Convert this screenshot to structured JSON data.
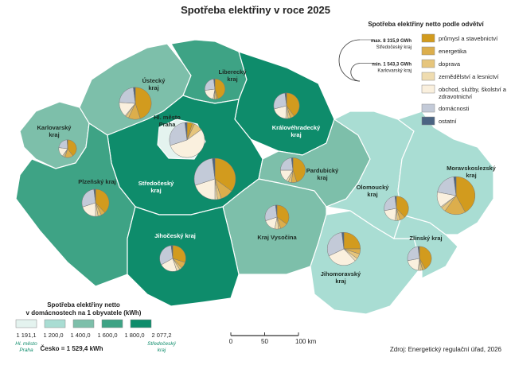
{
  "title": "Spotřeba elektřiny v roce 2025",
  "sector_legend": {
    "title": "Spotřeba elektřiny netto podle odvětví",
    "items": [
      {
        "name": "průmysl a stavebnictví",
        "color": "#d29b1e"
      },
      {
        "name": "energetika",
        "color": "#dcae4c"
      },
      {
        "name": "doprava",
        "color": "#e6c57c"
      },
      {
        "name": "zemědělství a lesnictví",
        "color": "#efdcb0"
      },
      {
        "name": "obchod, služby, školství a zdravotnictví",
        "color": "#faf0de"
      },
      {
        "name": "domácnosti",
        "color": "#c3cad8"
      },
      {
        "name": "ostatní",
        "color": "#4b6482"
      }
    ]
  },
  "pie_legend": {
    "max": {
      "value": 8315.9,
      "label": "max. 8 315,9 GWh",
      "region": "Středočeský kraj"
    },
    "min": {
      "value": 1543.3,
      "label": "min. 1 543,3 GWh",
      "region": "Karlovarský kraj"
    }
  },
  "class_legend": {
    "title": [
      "Spotřeba elektřiny netto",
      "v domácnostech na 1 obyvatele (kWh)"
    ],
    "colors": [
      "#e4f3ef",
      "#a9ddd3",
      "#7dbfaa",
      "#3ea385",
      "#0e8c6b"
    ],
    "breaks": [
      {
        "value": 1191.1,
        "label": "1 191,1"
      },
      {
        "value": 1200,
        "label": "1 200,0"
      },
      {
        "value": 1400,
        "label": "1 400,0"
      },
      {
        "value": 1600,
        "label": "1 600,0"
      },
      {
        "value": 1800,
        "label": "1 800,0"
      },
      {
        "value": 2077.2,
        "label": "2 077,2"
      }
    ],
    "min_region": [
      "Hl. město",
      "Praha"
    ],
    "max_region": [
      "Středočeský",
      "kraj"
    ],
    "country": "Česko = 1 529,4 kWh"
  },
  "scale_bar": {
    "ticks": [
      0,
      50,
      {
        "value": 100,
        "label": "100 km"
      }
    ]
  },
  "source": "Zdroj: Energetický regulační úřad, 2026",
  "regions": [
    {
      "label": [
        "Karlovarský",
        "kraj"
      ],
      "class": 2,
      "total_gwh": 1543.3,
      "shares": [
        40,
        15,
        3,
        2,
        17,
        22,
        1
      ]
    },
    {
      "label": [
        "Ústecký",
        "kraj"
      ],
      "class": 2,
      "total_gwh": 5000,
      "shares": [
        45,
        12,
        3,
        1,
        15,
        22,
        2
      ]
    },
    {
      "label": [
        "Liberecký",
        "kraj"
      ],
      "class": 3,
      "total_gwh": 2000,
      "shares": [
        45,
        3,
        3,
        2,
        20,
        25,
        2
      ]
    },
    {
      "label": [
        "Královéhradecký",
        "kraj"
      ],
      "class": 4,
      "total_gwh": 3200,
      "shares": [
        40,
        5,
        3,
        3,
        20,
        27,
        2
      ]
    },
    {
      "label": [
        "Středočeský",
        "kraj"
      ],
      "class": 4,
      "total_gwh": 8315.9,
      "shares": [
        35,
        10,
        3,
        2,
        20,
        28,
        2
      ]
    },
    {
      "label": [
        "Hl. město",
        "Praha"
      ],
      "class": 0,
      "total_gwh": 6000,
      "shares": [
        5,
        2,
        8,
        0,
        55,
        28,
        2
      ]
    },
    {
      "label": [
        "Plzeňský kraj"
      ],
      "class": 3,
      "total_gwh": 3600,
      "shares": [
        38,
        5,
        4,
        3,
        20,
        28,
        2
      ]
    },
    {
      "label": [
        "Pardubický",
        "kraj"
      ],
      "class": 2,
      "total_gwh": 3000,
      "shares": [
        45,
        7,
        4,
        3,
        16,
        23,
        2
      ]
    },
    {
      "label": [
        "Kraj Vysočina"
      ],
      "class": 2,
      "total_gwh": 2800,
      "shares": [
        35,
        10,
        3,
        5,
        17,
        28,
        2
      ]
    },
    {
      "label": [
        "Jihočeský kraj"
      ],
      "class": 4,
      "total_gwh": 3300,
      "shares": [
        30,
        8,
        3,
        4,
        22,
        31,
        2
      ]
    },
    {
      "label": [
        "Jihomoravský",
        "kraj"
      ],
      "class": 1,
      "total_gwh": 5300,
      "shares": [
        25,
        5,
        5,
        3,
        30,
        30,
        2
      ]
    },
    {
      "label": [
        "Olomoucký",
        "kraj"
      ],
      "class": 1,
      "total_gwh": 2900,
      "shares": [
        38,
        7,
        4,
        3,
        20,
        26,
        2
      ]
    },
    {
      "label": [
        "Zlínský kraj"
      ],
      "class": 1,
      "total_gwh": 2800,
      "shares": [
        42,
        4,
        3,
        3,
        20,
        26,
        2
      ]
    },
    {
      "label": [
        "Moravskoslezský",
        "kraj"
      ],
      "class": 1,
      "total_gwh": 7000,
      "shares": [
        42,
        18,
        4,
        1,
        13,
        20,
        2
      ]
    }
  ]
}
